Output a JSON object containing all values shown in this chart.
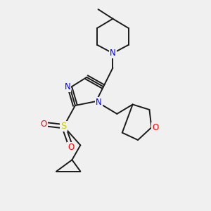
{
  "bg_color": "#f0f0f0",
  "bond_color": "#1a1a1a",
  "n_color": "#0000ff",
  "o_color": "#ff0000",
  "s_color": "#cccc00",
  "line_width": 1.4,
  "font_size": 8.5,
  "xlim": [
    0,
    10
  ],
  "ylim": [
    0,
    10
  ]
}
